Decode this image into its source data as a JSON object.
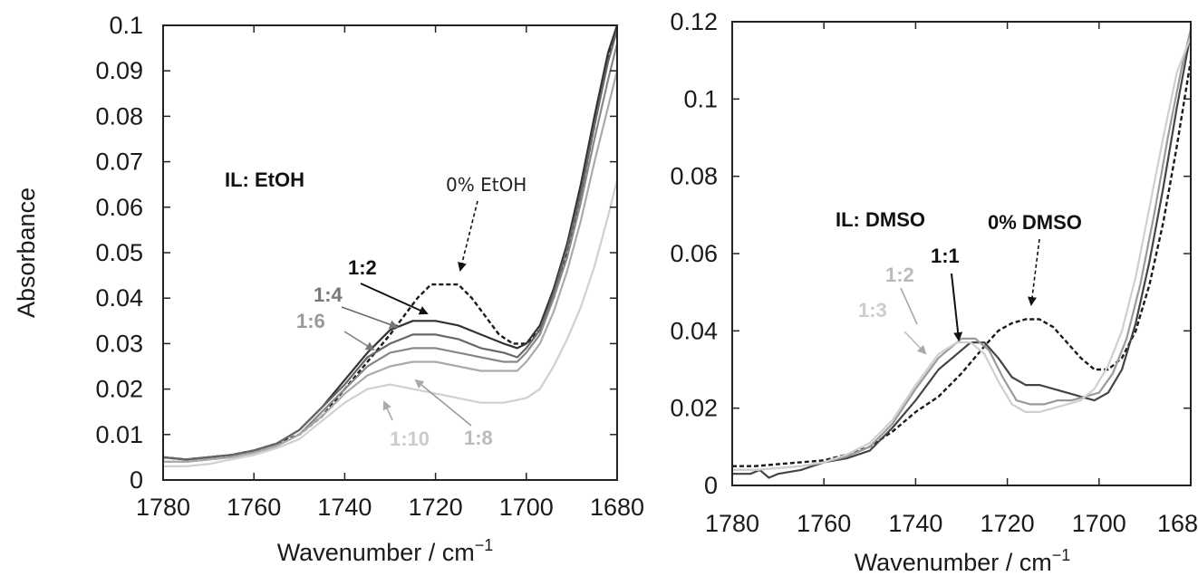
{
  "chart_data": [
    {
      "type": "line",
      "xlabel": "Wavenumber / cm",
      "xlabel_sup": "−1",
      "ylabel": "Absorbance",
      "xlim": [
        1780,
        1680
      ],
      "ylim": [
        0,
        0.1
      ],
      "x_ticks": [
        "1780",
        "1760",
        "1740",
        "1720",
        "1700",
        "1680"
      ],
      "y_ticks": [
        "0",
        "0.01",
        "0.02",
        "0.03",
        "0.04",
        "0.05",
        "0.06",
        "0.07",
        "0.08",
        "0.09",
        "0.1"
      ],
      "grid": false,
      "annotations": {
        "panel_label": "IL: EtOH",
        "reference": "0% EtOH",
        "r12": "1:2",
        "r14": "1:4",
        "r16": "1:6",
        "r18": "1:8",
        "r110": "1:10"
      },
      "series": [
        {
          "color": "#1a1a1a",
          "dash": true,
          "x": [
            1780,
            1775,
            1770,
            1765,
            1760,
            1755,
            1750,
            1745,
            1740,
            1735,
            1730,
            1727,
            1724,
            1721,
            1718,
            1715,
            1712,
            1709,
            1706,
            1703,
            1700,
            1697,
            1694,
            1691,
            1688,
            1685,
            1682,
            1680
          ],
          "y": [
            0.005,
            0.0045,
            0.005,
            0.0055,
            0.0065,
            0.008,
            0.01,
            0.014,
            0.02,
            0.026,
            0.032,
            0.036,
            0.04,
            0.043,
            0.043,
            0.043,
            0.04,
            0.036,
            0.032,
            0.03,
            0.03,
            0.033,
            0.04,
            0.05,
            0.063,
            0.078,
            0.093,
            0.1
          ]
        },
        {
          "color": "#333333",
          "dash": false,
          "x": [
            1780,
            1775,
            1770,
            1765,
            1760,
            1755,
            1750,
            1745,
            1740,
            1735,
            1730,
            1725,
            1720,
            1715,
            1710,
            1705,
            1702,
            1700,
            1697,
            1694,
            1691,
            1688,
            1685,
            1682,
            1680
          ],
          "y": [
            0.005,
            0.0045,
            0.005,
            0.0055,
            0.0065,
            0.008,
            0.011,
            0.016,
            0.022,
            0.028,
            0.033,
            0.035,
            0.035,
            0.034,
            0.032,
            0.03,
            0.029,
            0.03,
            0.034,
            0.042,
            0.052,
            0.065,
            0.08,
            0.094,
            0.1
          ]
        },
        {
          "color": "#666666",
          "dash": false,
          "x": [
            1780,
            1775,
            1770,
            1765,
            1760,
            1755,
            1750,
            1745,
            1740,
            1735,
            1730,
            1725,
            1720,
            1715,
            1710,
            1705,
            1702,
            1700,
            1697,
            1694,
            1691,
            1688,
            1685,
            1682,
            1680
          ],
          "y": [
            0.005,
            0.0045,
            0.005,
            0.0055,
            0.0065,
            0.008,
            0.011,
            0.016,
            0.021,
            0.027,
            0.03,
            0.032,
            0.032,
            0.031,
            0.029,
            0.028,
            0.027,
            0.029,
            0.033,
            0.041,
            0.051,
            0.063,
            0.078,
            0.092,
            0.099
          ]
        },
        {
          "color": "#888888",
          "dash": false,
          "x": [
            1780,
            1775,
            1770,
            1765,
            1760,
            1755,
            1750,
            1745,
            1740,
            1735,
            1730,
            1725,
            1720,
            1715,
            1710,
            1705,
            1702,
            1700,
            1697,
            1694,
            1691,
            1688,
            1685,
            1682,
            1680
          ],
          "y": [
            0.004,
            0.004,
            0.0045,
            0.005,
            0.006,
            0.0075,
            0.01,
            0.015,
            0.02,
            0.025,
            0.028,
            0.029,
            0.029,
            0.028,
            0.027,
            0.026,
            0.026,
            0.028,
            0.032,
            0.04,
            0.049,
            0.061,
            0.075,
            0.088,
            0.096
          ]
        },
        {
          "color": "#aaaaaa",
          "dash": false,
          "x": [
            1780,
            1775,
            1770,
            1765,
            1760,
            1755,
            1750,
            1745,
            1740,
            1735,
            1730,
            1725,
            1720,
            1715,
            1710,
            1705,
            1702,
            1700,
            1697,
            1694,
            1691,
            1688,
            1685,
            1682,
            1680
          ],
          "y": [
            0.004,
            0.004,
            0.0045,
            0.005,
            0.006,
            0.0075,
            0.01,
            0.014,
            0.019,
            0.023,
            0.025,
            0.026,
            0.026,
            0.025,
            0.024,
            0.024,
            0.024,
            0.026,
            0.03,
            0.037,
            0.046,
            0.057,
            0.07,
            0.082,
            0.09
          ]
        },
        {
          "color": "#d0d0d0",
          "dash": false,
          "x": [
            1780,
            1775,
            1770,
            1765,
            1760,
            1755,
            1750,
            1745,
            1740,
            1735,
            1730,
            1725,
            1720,
            1715,
            1710,
            1705,
            1700,
            1697,
            1694,
            1691,
            1688,
            1685,
            1682,
            1680
          ],
          "y": [
            0.003,
            0.003,
            0.0035,
            0.0045,
            0.0055,
            0.007,
            0.009,
            0.013,
            0.017,
            0.02,
            0.021,
            0.02,
            0.019,
            0.018,
            0.017,
            0.017,
            0.018,
            0.02,
            0.025,
            0.031,
            0.038,
            0.047,
            0.058,
            0.066
          ]
        }
      ]
    },
    {
      "type": "line",
      "xlabel": "Wavenumber / cm",
      "xlabel_sup": "−1",
      "ylabel": "",
      "xlim": [
        1780,
        1680
      ],
      "ylim": [
        0,
        0.12
      ],
      "x_ticks": [
        "1780",
        "1760",
        "1740",
        "1720",
        "1700",
        "168"
      ],
      "y_ticks": [
        "0",
        "0.02",
        "0.04",
        "0.06",
        "0.08",
        "0.1",
        "0.12"
      ],
      "grid": false,
      "annotations": {
        "panel_label": "IL: DMSO",
        "reference": "0% DMSO",
        "r11": "1:1",
        "r12": "1:2",
        "r13": "1:3"
      },
      "series": [
        {
          "color": "#1a1a1a",
          "dash": true,
          "x": [
            1780,
            1775,
            1770,
            1765,
            1760,
            1755,
            1750,
            1745,
            1740,
            1735,
            1730,
            1725,
            1722,
            1719,
            1716,
            1713,
            1710,
            1707,
            1704,
            1701,
            1698,
            1695,
            1692,
            1689,
            1686,
            1683,
            1680
          ],
          "y": [
            0.005,
            0.005,
            0.0055,
            0.006,
            0.0065,
            0.008,
            0.01,
            0.014,
            0.019,
            0.023,
            0.029,
            0.036,
            0.04,
            0.042,
            0.043,
            0.043,
            0.041,
            0.037,
            0.033,
            0.03,
            0.03,
            0.033,
            0.04,
            0.052,
            0.068,
            0.088,
            0.11
          ]
        },
        {
          "color": "#444444",
          "dash": false,
          "x": [
            1780,
            1776,
            1774,
            1772,
            1770,
            1765,
            1760,
            1755,
            1750,
            1745,
            1740,
            1735,
            1730,
            1728,
            1725,
            1722,
            1719,
            1716,
            1713,
            1710,
            1707,
            1704,
            1701,
            1698,
            1695,
            1692,
            1689,
            1686,
            1683,
            1680
          ],
          "y": [
            0.003,
            0.003,
            0.004,
            0.002,
            0.003,
            0.004,
            0.006,
            0.007,
            0.009,
            0.015,
            0.022,
            0.03,
            0.035,
            0.037,
            0.037,
            0.033,
            0.028,
            0.026,
            0.026,
            0.025,
            0.024,
            0.023,
            0.022,
            0.024,
            0.03,
            0.042,
            0.058,
            0.077,
            0.098,
            0.117
          ]
        },
        {
          "color": "#9a9a9a",
          "dash": false,
          "x": [
            1780,
            1775,
            1770,
            1765,
            1760,
            1755,
            1750,
            1745,
            1740,
            1735,
            1730,
            1727,
            1724,
            1721,
            1718,
            1715,
            1712,
            1709,
            1706,
            1703,
            1700,
            1697,
            1694,
            1691,
            1688,
            1685,
            1682,
            1680
          ],
          "y": [
            0.004,
            0.004,
            0.0045,
            0.005,
            0.006,
            0.0075,
            0.01,
            0.016,
            0.025,
            0.033,
            0.038,
            0.038,
            0.035,
            0.028,
            0.022,
            0.021,
            0.021,
            0.022,
            0.022,
            0.023,
            0.024,
            0.029,
            0.038,
            0.052,
            0.07,
            0.09,
            0.108,
            0.118
          ]
        },
        {
          "color": "#cfcfcf",
          "dash": false,
          "x": [
            1780,
            1775,
            1770,
            1765,
            1760,
            1755,
            1750,
            1745,
            1740,
            1735,
            1731,
            1728,
            1725,
            1722,
            1719,
            1716,
            1713,
            1710,
            1707,
            1704,
            1701,
            1698,
            1695,
            1692,
            1689,
            1686,
            1683,
            1680
          ],
          "y": [
            0.004,
            0.004,
            0.0045,
            0.005,
            0.006,
            0.008,
            0.011,
            0.017,
            0.026,
            0.034,
            0.037,
            0.037,
            0.034,
            0.027,
            0.021,
            0.019,
            0.019,
            0.02,
            0.021,
            0.022,
            0.025,
            0.031,
            0.04,
            0.054,
            0.072,
            0.09,
            0.107,
            0.116
          ]
        }
      ]
    }
  ]
}
